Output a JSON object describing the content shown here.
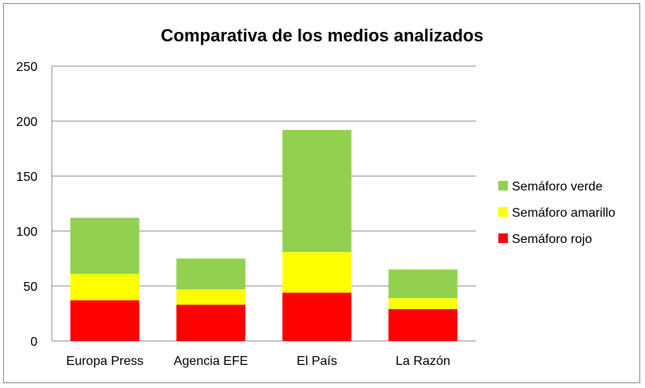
{
  "chart_data": {
    "type": "bar",
    "stacked": true,
    "title": "Comparativa de los medios analizados",
    "xlabel": "",
    "ylabel": "",
    "categories": [
      "Europa Press",
      "Agencia EFE",
      "El País",
      "La Razón"
    ],
    "series": [
      {
        "name": "Semáforo rojo",
        "color": "#ff0000",
        "values": [
          37,
          33,
          44,
          29
        ]
      },
      {
        "name": "Semáforo amarillo",
        "color": "#ffff00",
        "values": [
          24,
          14,
          37,
          10
        ]
      },
      {
        "name": "Semáforo verde",
        "color": "#92d050",
        "values": [
          51,
          28,
          111,
          26
        ]
      }
    ],
    "ylim": [
      0,
      250
    ],
    "yticks": [
      "0",
      "50",
      "100",
      "150",
      "200",
      "250"
    ],
    "grid": true,
    "legend": "right"
  }
}
